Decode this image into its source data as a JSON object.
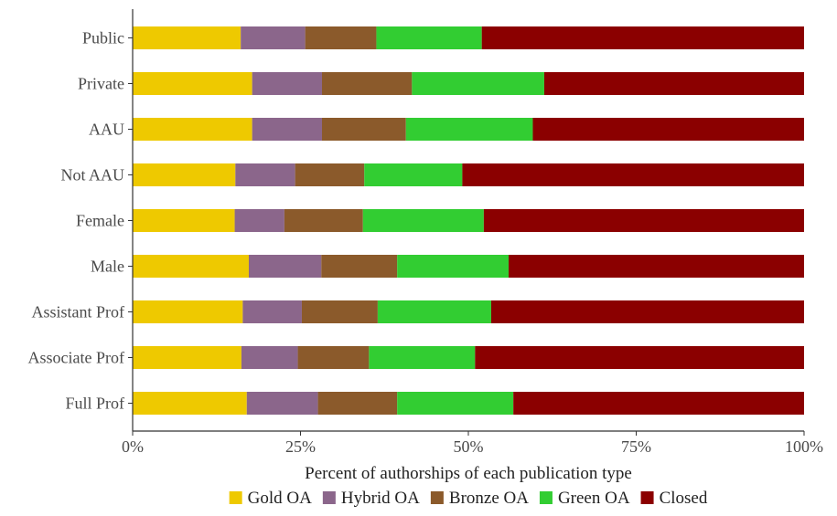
{
  "chart_data": {
    "type": "bar",
    "orientation": "horizontal",
    "stacked": true,
    "xlabel": "Percent of authorships of each publication type",
    "ylabel": "",
    "xlim": [
      0,
      100
    ],
    "xticks": [
      0,
      25,
      50,
      75,
      100
    ],
    "xtick_labels": [
      "0%",
      "25%",
      "50%",
      "75%",
      "100%"
    ],
    "grid": false,
    "legend_position": "bottom",
    "categories": [
      "Public",
      "Private",
      "AAU",
      "Not AAU",
      "Female",
      "Male",
      "Assistant Prof",
      "Associate Prof",
      "Full Prof"
    ],
    "series": [
      {
        "name": "Gold OA",
        "color": "#EEC900",
        "values": [
          16.1,
          17.8,
          17.8,
          15.3,
          15.2,
          17.3,
          16.4,
          16.2,
          17.0
        ]
      },
      {
        "name": "Hybrid OA",
        "color": "#8B668B",
        "values": [
          9.6,
          10.4,
          10.4,
          8.9,
          7.4,
          10.8,
          8.8,
          8.4,
          10.6
        ]
      },
      {
        "name": "Bronze OA",
        "color": "#8B5A2B",
        "values": [
          10.6,
          13.4,
          12.5,
          10.3,
          11.7,
          11.3,
          11.3,
          10.6,
          11.8
        ]
      },
      {
        "name": "Green OA",
        "color": "#32CD32",
        "values": [
          15.7,
          19.7,
          18.9,
          14.6,
          18.0,
          16.6,
          16.9,
          15.8,
          17.3
        ]
      },
      {
        "name": "Closed",
        "color": "#8B0000",
        "values": [
          48.0,
          38.7,
          40.4,
          50.9,
          47.7,
          44.0,
          46.6,
          49.0,
          43.3
        ]
      }
    ]
  }
}
